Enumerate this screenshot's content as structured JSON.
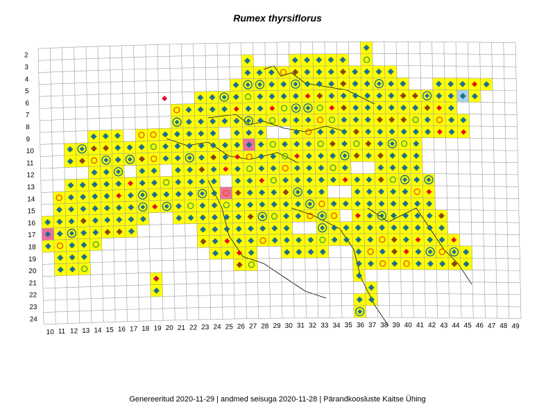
{
  "title": "Rumex thyrsiflorus",
  "footer": "Genereeritud 2020-11-29  |  andmed seisuga 2020-11-28  |  Pärandkoosluste Kaitse Ühing",
  "colors": {
    "occupied_cell": "#ffff00",
    "highlight_pink": "#ee6e9a",
    "highlight_blue": "#a8d3e6",
    "grid": "#9a9a9a",
    "border": "#000000",
    "diamond_blue": "#1e6f8e",
    "diamond_brown": "#8b4513",
    "diamond_red": "#e0112b",
    "ring_orange": "#e8580c",
    "ring_green": "#3aa24a"
  },
  "axes": {
    "row_labels": [
      "2",
      "3",
      "4",
      "5",
      "6",
      "7",
      "8",
      "9",
      "10",
      "11",
      "12",
      "13",
      "14",
      "15",
      "16",
      "17",
      "18",
      "19",
      "20",
      "21",
      "22",
      "23",
      "24"
    ],
    "col_labels": [
      "10",
      "11",
      "12",
      "13",
      "14",
      "15",
      "16",
      "17",
      "18",
      "19",
      "20",
      "21",
      "22",
      "23",
      "24",
      "25",
      "26",
      "27",
      "28",
      "29",
      "30",
      "31",
      "32",
      "33",
      "34",
      "35",
      "36",
      "37",
      "38",
      "39",
      "40",
      "41",
      "42",
      "43",
      "44",
      "45",
      "46",
      "47",
      "48",
      "49"
    ]
  },
  "legend_symbols": [
    "blue-diamond-icon",
    "brown-diamond-icon",
    "red-diamond-icon",
    "orange-ring-icon",
    "green-ring-icon",
    "blue-ring-icon",
    "double-ring-icon"
  ]
}
